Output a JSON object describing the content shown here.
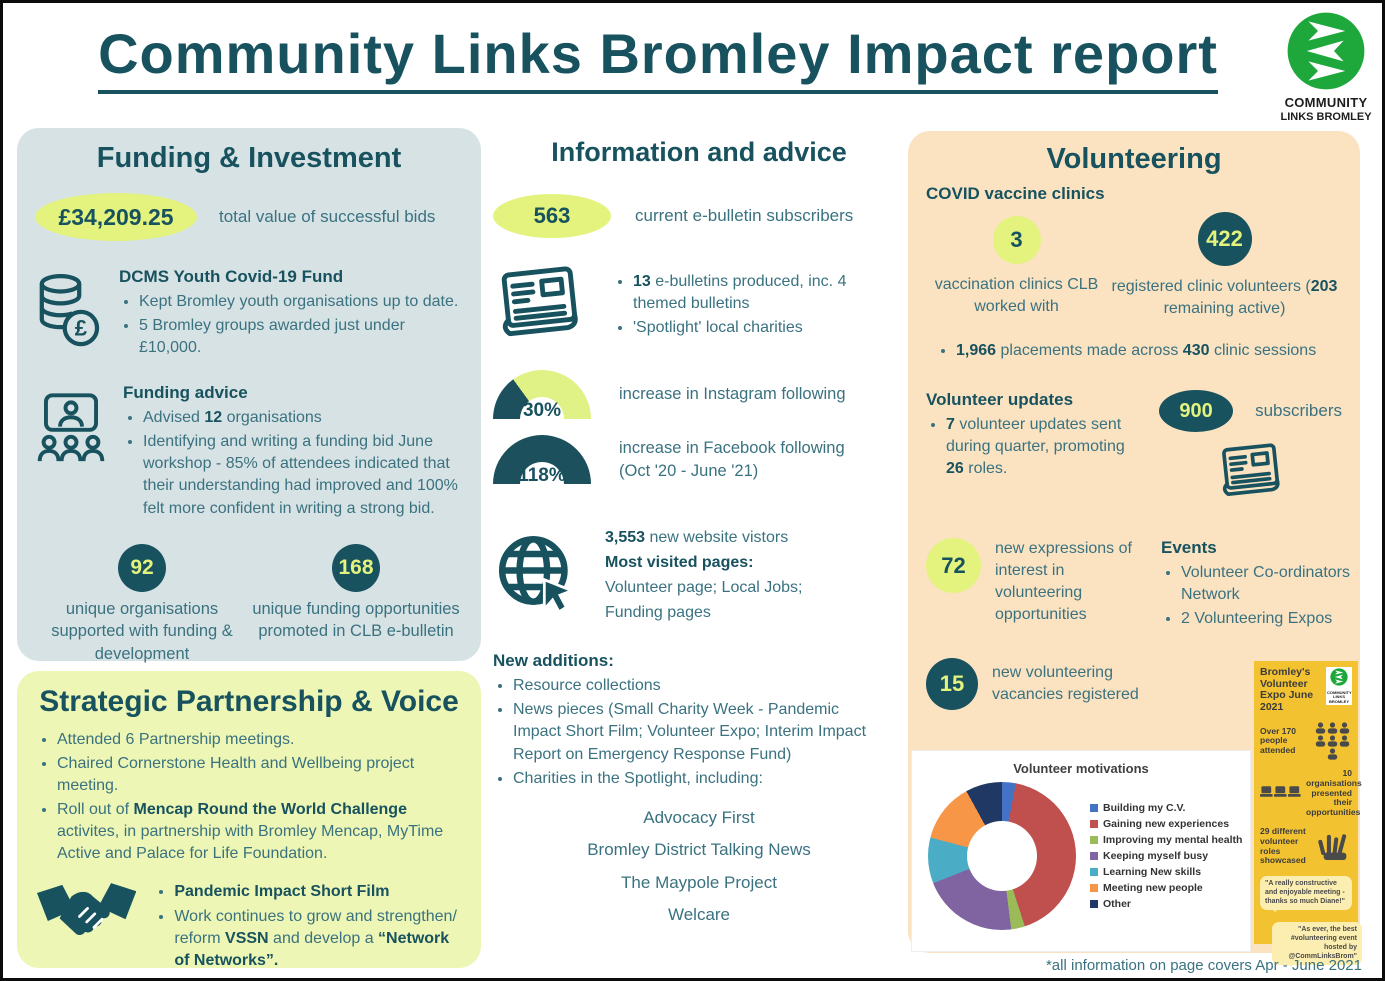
{
  "page": {
    "title": "Community Links Bromley Impact report",
    "footnote": "*all information on page covers Apr - June 2021",
    "logo_line1": "COMMUNITY",
    "logo_line2": "LINKS BROMLEY"
  },
  "colors": {
    "heading_teal": "#17525e",
    "body_teal": "#3a7280",
    "pill_yellow": "#e3f37d",
    "gauge_dark": "#1b505c",
    "gauge_light": "#e0f186",
    "panel_funding": "#d7e2e4",
    "panel_strategic": "#edf6b4",
    "panel_volunteering": "#fbe3c2",
    "poster_yellow": "#f2c231",
    "logo_green": "#1ea83c"
  },
  "funding": {
    "title": "Funding & Investment",
    "total_value": "£34,209.25",
    "total_label": "total value of successful bids",
    "dcms_title": "DCMS Youth Covid-19 Fund",
    "dcms_bullet1": "Kept Bromley youth organisations up to date.",
    "dcms_bullet2": "5 Bromley groups awarded just under £10,000.",
    "advice_title": "Funding advice",
    "advice_bullet1": [
      {
        "t": "Advised ",
        "b": 0
      },
      {
        "t": "12",
        "b": 1
      },
      {
        "t": " organisations",
        "b": 0
      }
    ],
    "advice_bullet2": "Identifying and writing a funding bid June workshop - 85% of attendees indicated that their understanding had improved and 100% felt more confident in writing a strong bid.",
    "stat1_value": "92",
    "stat1_label": "unique organisations supported with funding & development",
    "stat2_value": "168",
    "stat2_label": "unique funding opportunities promoted in CLB e-bulletin"
  },
  "strategic": {
    "title": "Strategic Partnership & Voice",
    "bullet1": "Attended 6 Partnership meetings.",
    "bullet2": "Chaired Cornerstone Health and Wellbeing project meeting.",
    "bullet3": [
      {
        "t": "Roll out of ",
        "b": 0
      },
      {
        "t": "Mencap Round the World Challenge",
        "b": 1
      },
      {
        "t": " activites, in partnership with Bromley Mencap, MyTime Active and Palace for Life Foundation.",
        "b": 0
      }
    ],
    "sub_bullet1": [
      {
        "t": "Pandemic Impact Short Film",
        "b": 1
      }
    ],
    "sub_bullet2": [
      {
        "t": "Work continues to grow and strengthen/ reform ",
        "b": 0
      },
      {
        "t": "VSSN",
        "b": 1
      },
      {
        "t": " and develop a ",
        "b": 0
      },
      {
        "t": "“Network of Networks”.",
        "b": 1
      }
    ]
  },
  "info": {
    "title": "Information and advice",
    "subscribers_value": "563",
    "subscribers_label": "current e-bulletin subscribers",
    "bulletin_bullet1": [
      {
        "t": "13",
        "b": 1
      },
      {
        "t": " e-bulletins produced, inc. 4 themed bulletins",
        "b": 0
      }
    ],
    "bulletin_bullet2": "'Spotlight' local charities",
    "gauges": [
      {
        "label": "30%",
        "fill": 30,
        "caption": "increase in Instagram following"
      },
      {
        "label": "118%",
        "fill": 100,
        "caption": "increase in Facebook following (Oct '20 - June '21)"
      }
    ],
    "website_line1": [
      {
        "t": "3,553",
        "b": 1
      },
      {
        "t": " new website vistors",
        "b": 0
      }
    ],
    "website_line2": "Most visited pages:",
    "website_line3": "Volunteer page; Local Jobs;",
    "website_line4": "Funding pages",
    "new_additions_title": "New additions:",
    "new_bullet1": "Resource collections",
    "new_bullet2": "News pieces (Small Charity Week - Pandemic Impact Short Film; Volunteer Expo; Interim Impact Report on Emergency Response Fund)",
    "new_bullet3": "Charities in the Spotlight, including:",
    "charity1": "Advocacy First",
    "charity2": "Bromley District Talking News",
    "charity3": "The Maypole Project",
    "charity4": "Welcare"
  },
  "volunteering": {
    "title": "Volunteering",
    "covid_title": "COVID vaccine clinics",
    "clinics_value": "3",
    "clinics_label": "vaccination clinics CLB worked with",
    "volunteers_value": "422",
    "volunteers_label": [
      {
        "t": "registered clinic volunteers (",
        "b": 0
      },
      {
        "t": "203",
        "b": 1
      },
      {
        "t": " remaining active)",
        "b": 0
      }
    ],
    "placements": [
      {
        "t": "1,966",
        "b": 1
      },
      {
        "t": " placements made across ",
        "b": 0
      },
      {
        "t": "430",
        "b": 1
      },
      {
        "t": " clinic sessions",
        "b": 0
      }
    ],
    "updates_title": "Volunteer updates",
    "updates_bullet": [
      {
        "t": "7",
        "b": 1
      },
      {
        "t": " volunteer updates sent during quarter, promoting ",
        "b": 0
      },
      {
        "t": "26",
        "b": 1
      },
      {
        "t": " roles.",
        "b": 0
      }
    ],
    "subscribers_value": "900",
    "subscribers_label": "subscribers",
    "expressions_value": "72",
    "expressions_label": "new expressions of interest in volunteering opportunities",
    "events_title": "Events",
    "event1": "Volunteer Co-ordinators Network",
    "event2": "2 Volunteering Expos",
    "vacancies_value": "15",
    "vacancies_label": "new volunteering vacancies registered"
  },
  "chart_data": {
    "type": "pie",
    "subtype": "donut",
    "title": "Volunteer motivations",
    "categories": [
      "Building my C.V.",
      "Gaining new experiences",
      "Improving my mental health",
      "Keeping myself busy",
      "Learning New skills",
      "Meeting new people",
      "Other"
    ],
    "values": [
      3,
      42,
      3,
      21,
      10,
      13,
      8
    ],
    "colors": [
      "#4472c4",
      "#c0504d",
      "#9bbb59",
      "#8064a2",
      "#4bacc6",
      "#f79646",
      "#1f3864"
    ],
    "legend_position": "right",
    "units": "percent (estimated from slice angles)"
  },
  "poster": {
    "title": "Bromley's Volunteer Expo June 2021",
    "stat1": "Over 170 people attended",
    "stat2_value": "10",
    "stat2_label": "organisations presented their opportunities",
    "stat3": "29 different volunteer roles showcased",
    "quote1": "\"A really constructive and enjoyable meeting - thanks so much Diane!\"",
    "quote2": "\"As ever, the best #volunteering event hosted by @CommLinksBrom\""
  }
}
